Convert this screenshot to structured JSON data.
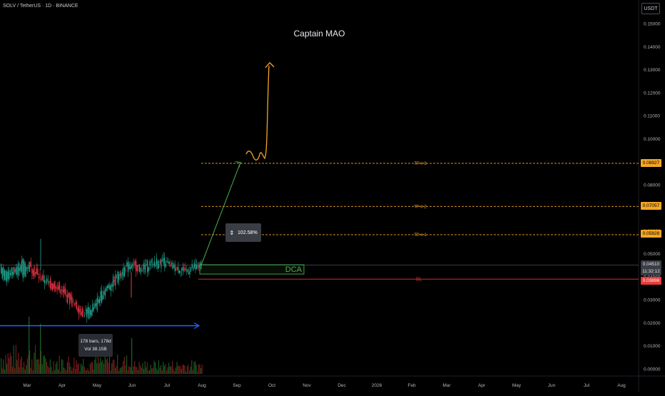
{
  "header": {
    "symbol_line": "SOLV / TetherUS · 1D · BINANCE",
    "watermark": "Captain MAO",
    "currency": "USDT"
  },
  "tooltip": {
    "bars": "178 bars, 178d",
    "vol": "Vol 38.15B"
  },
  "measure": {
    "percent": "102.58%"
  },
  "levels": {
    "tp3": {
      "label": "TP # 3",
      "price": 0.08927,
      "tag": "0.08927"
    },
    "tp2": {
      "label": "TP # 2",
      "price": 0.07057,
      "tag": "0.07057"
    },
    "tp1": {
      "label": "TP # 1",
      "price": 0.05828,
      "tag": "0.05828"
    },
    "sl": {
      "label": "SL",
      "price": 0.03898,
      "tag": "0.03898"
    },
    "dca": {
      "label": "DCA",
      "low": 0.0412,
      "high": 0.04525
    },
    "current": {
      "price": 0.0451,
      "tag": "0.04510",
      "countdown": "11:32:12"
    }
  },
  "colors": {
    "up": "#22ab94",
    "down": "#f23645",
    "tp": "#f5a623",
    "sl": "#e83b3b",
    "dca": "#4caf50",
    "arrow_green": "#4caf50",
    "arrow_orange": "#f5a623",
    "range_blue": "#2962ff",
    "vol_up": "#1b5e20",
    "vol_down": "#7f1d1d"
  },
  "chart_data": {
    "type": "candlestick",
    "title": "Captain MAO",
    "ylim": [
      -0.003,
      0.155
    ],
    "y_ticks": [
      0.15,
      0.14,
      0.13,
      0.12,
      0.11,
      0.1,
      0.09,
      0.08,
      0.07,
      0.06,
      0.05,
      0.04,
      0.03,
      0.02,
      0.01,
      0.0
    ],
    "y_tick_labels": [
      "0.15000",
      "0.14000",
      "0.13000",
      "0.12000",
      "0.11000",
      "0.10000",
      "0.09000",
      "0.08000",
      "0.07000",
      "0.06000",
      "0.05000",
      "0.04000",
      "0.03000",
      "0.02000",
      "0.01000",
      "0.00000"
    ],
    "x_labels": [
      "Mar",
      "Apr",
      "May",
      "Jun",
      "Jul",
      "Aug",
      "Sep",
      "Oct",
      "Nov",
      "Dec",
      "2026",
      "Feb",
      "Mar",
      "Apr",
      "May",
      "Jun",
      "Jul",
      "Aug"
    ],
    "price_path": [
      [
        0.041,
        0.045
      ],
      [
        0.039,
        0.042
      ],
      [
        0.043,
        0.044
      ],
      [
        0.04,
        0.047
      ],
      [
        0.046,
        0.043
      ],
      [
        0.042,
        0.04
      ],
      [
        0.037,
        0.039
      ],
      [
        0.038,
        0.035
      ],
      [
        0.036,
        0.034
      ],
      [
        0.033,
        0.03
      ],
      [
        0.029,
        0.027
      ],
      [
        0.025,
        0.024
      ],
      [
        0.023,
        0.026
      ],
      [
        0.027,
        0.03
      ],
      [
        0.033,
        0.035
      ],
      [
        0.036,
        0.038
      ],
      [
        0.04,
        0.042
      ],
      [
        0.043,
        0.045
      ],
      [
        0.046,
        0.044
      ],
      [
        0.042,
        0.044
      ],
      [
        0.044,
        0.046
      ],
      [
        0.045,
        0.047
      ],
      [
        0.046,
        0.047
      ],
      [
        0.044,
        0.045
      ],
      [
        0.043,
        0.044
      ],
      [
        0.042,
        0.043
      ],
      [
        0.043,
        0.0445
      ],
      [
        0.044,
        0.0451
      ]
    ],
    "projection": {
      "green_arrow": {
        "from": [
          0.0451,
          0
        ],
        "to": [
          0.0897,
          1
        ]
      },
      "orange_path_top": 0.133
    }
  }
}
